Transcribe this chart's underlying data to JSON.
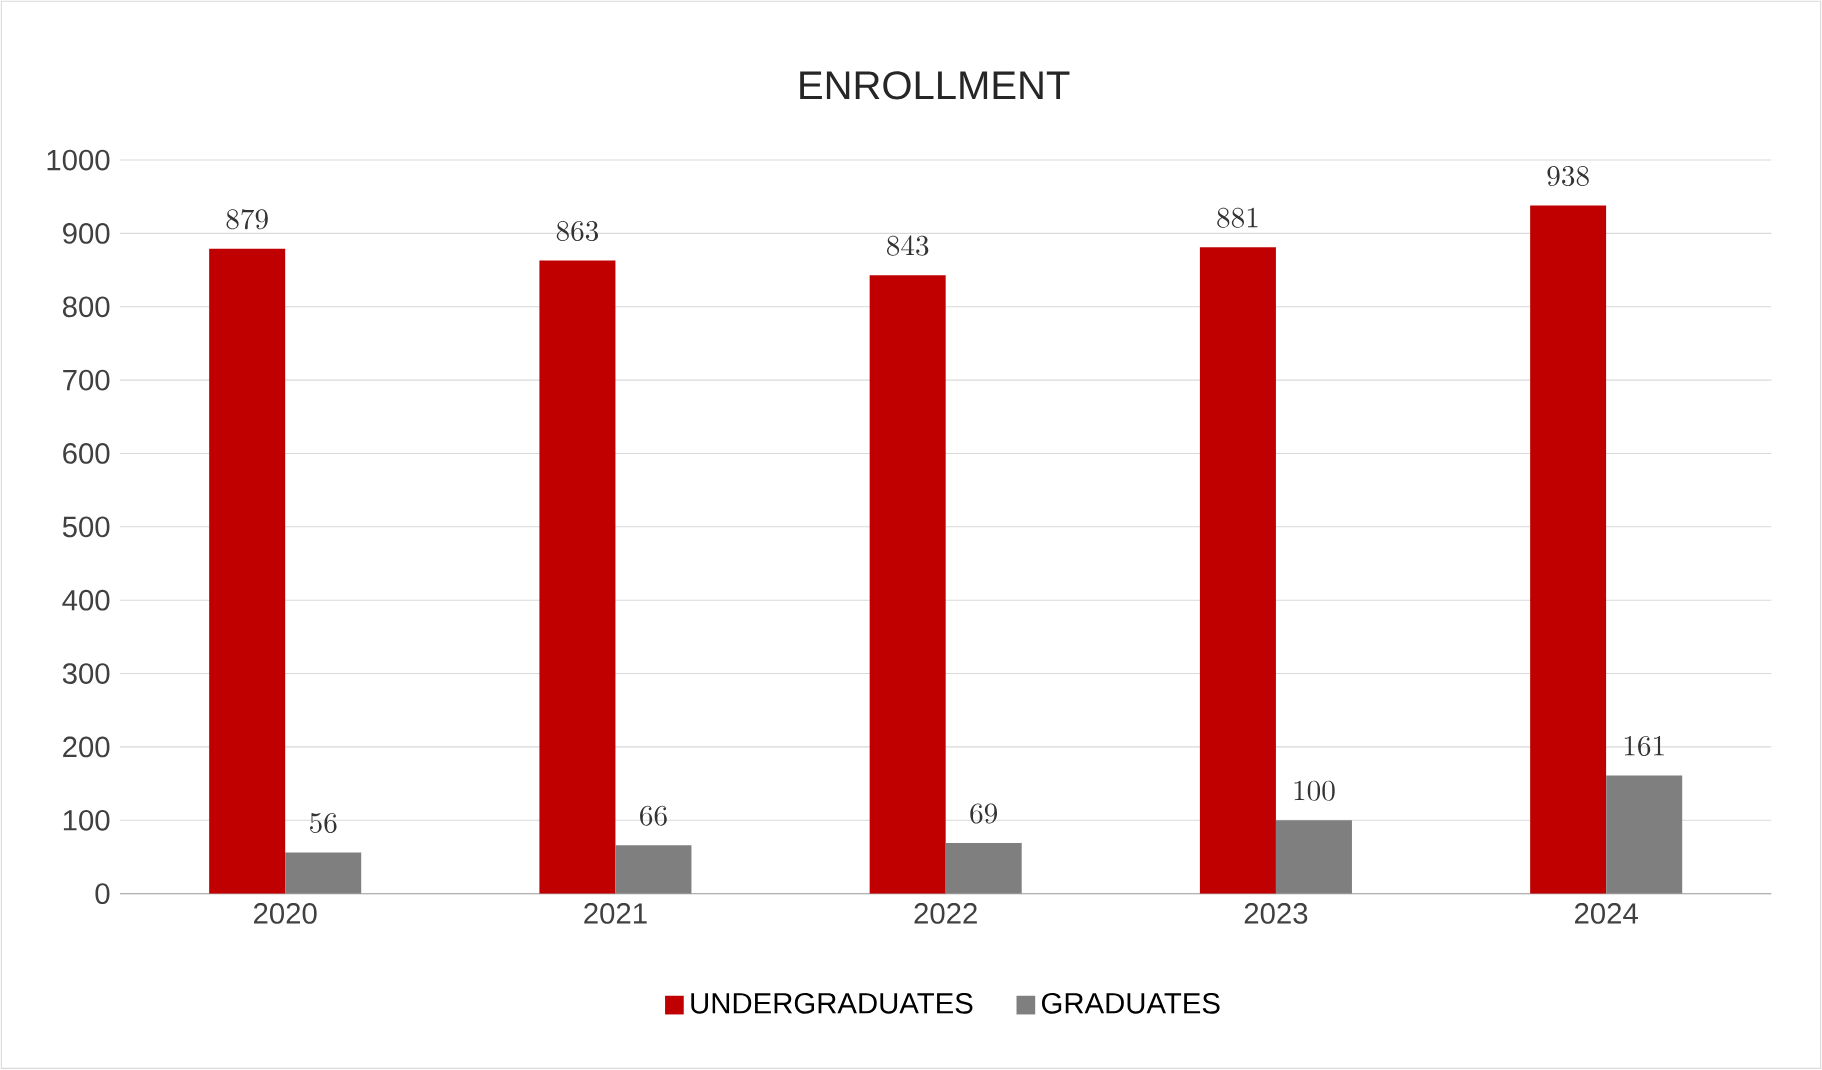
{
  "chart_data": {
    "type": "bar",
    "title": "ENROLLMENT",
    "categories": [
      "2020",
      "2021",
      "2022",
      "2023",
      "2024"
    ],
    "series": [
      {
        "name": "UNDERGRADUATES",
        "color": "#c00000",
        "values": [
          879,
          863,
          843,
          881,
          938
        ]
      },
      {
        "name": "GRADUATES",
        "color": "#7f7f7f",
        "values": [
          56,
          66,
          69,
          100,
          161
        ]
      }
    ],
    "ylim": [
      0,
      1000
    ],
    "yticks": [
      0,
      100,
      200,
      300,
      400,
      500,
      600,
      700,
      800,
      900,
      1000
    ],
    "grid": "y",
    "legend": "bottom",
    "data_labels": true
  }
}
